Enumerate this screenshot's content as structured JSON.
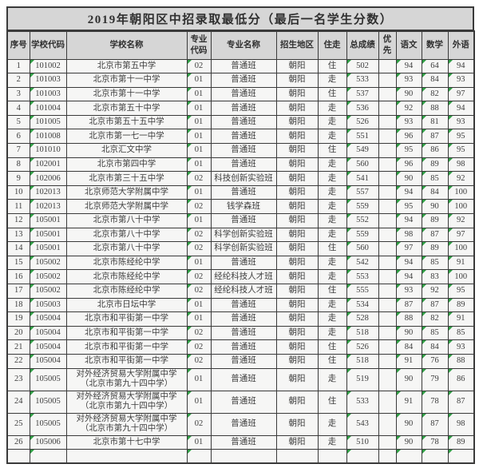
{
  "title": "2019年朝阳区中招录取最低分（最后一名学生分数）",
  "columns": [
    "序号",
    "学校代码",
    "学校名称",
    "专业代码",
    "专业名称",
    "招生地区",
    "住走",
    "总成绩",
    "优先",
    "语文",
    "数学",
    "外语"
  ],
  "rows": [
    [
      "1",
      "101002",
      "北京市第五中学",
      "02",
      "普通班",
      "朝阳",
      "住",
      "502",
      "",
      "94",
      "64",
      "94"
    ],
    [
      "2",
      "101003",
      "北京市第十一中学",
      "01",
      "普通班",
      "朝阳",
      "走",
      "533",
      "",
      "93",
      "84",
      "93"
    ],
    [
      "3",
      "101003",
      "北京市第十一中学",
      "01",
      "普通班",
      "朝阳",
      "住",
      "537",
      "",
      "90",
      "82",
      "97"
    ],
    [
      "4",
      "101004",
      "北京市第五十中学",
      "01",
      "普通班",
      "朝阳",
      "走",
      "536",
      "",
      "92",
      "88",
      "94"
    ],
    [
      "5",
      "101005",
      "北京市第五十五中学",
      "01",
      "普通班",
      "朝阳",
      "走",
      "526",
      "",
      "93",
      "81",
      "93"
    ],
    [
      "6",
      "101008",
      "北京市第一七一中学",
      "01",
      "普通班",
      "朝阳",
      "走",
      "551",
      "",
      "96",
      "87",
      "95"
    ],
    [
      "7",
      "101010",
      "北京汇文中学",
      "01",
      "普通班",
      "朝阳",
      "住",
      "549",
      "",
      "95",
      "86",
      "95"
    ],
    [
      "8",
      "102001",
      "北京市第四中学",
      "01",
      "普通班",
      "朝阳",
      "走",
      "560",
      "",
      "96",
      "89",
      "98"
    ],
    [
      "9",
      "102006",
      "北京市第三十五中学",
      "02",
      "科技创新实验班",
      "朝阳",
      "走",
      "541",
      "",
      "90",
      "85",
      "92"
    ],
    [
      "10",
      "102013",
      "北京师范大学附属中学",
      "01",
      "普通班",
      "朝阳",
      "走",
      "557",
      "",
      "94",
      "84",
      "100"
    ],
    [
      "11",
      "102013",
      "北京师范大学附属中学",
      "02",
      "钱学森班",
      "朝阳",
      "走",
      "559",
      "",
      "95",
      "90",
      "100"
    ],
    [
      "12",
      "105001",
      "北京市第八十中学",
      "01",
      "普通班",
      "朝阳",
      "走",
      "552",
      "",
      "94",
      "89",
      "92"
    ],
    [
      "13",
      "105001",
      "北京市第八十中学",
      "02",
      "科学创新实验班",
      "朝阳",
      "走",
      "559",
      "",
      "98",
      "87",
      "97"
    ],
    [
      "14",
      "105001",
      "北京市第八十中学",
      "02",
      "科学创新实验班",
      "朝阳",
      "住",
      "560",
      "",
      "97",
      "89",
      "100"
    ],
    [
      "15",
      "105002",
      "北京市陈经纶中学",
      "01",
      "普通班",
      "朝阳",
      "走",
      "542",
      "",
      "94",
      "85",
      "91"
    ],
    [
      "16",
      "105002",
      "北京市陈经纶中学",
      "02",
      "经纶科技人才班",
      "朝阳",
      "走",
      "553",
      "",
      "94",
      "83",
      "100"
    ],
    [
      "17",
      "105002",
      "北京市陈经纶中学",
      "02",
      "经纶科技人才班",
      "朝阳",
      "住",
      "555",
      "",
      "93",
      "92",
      "95"
    ],
    [
      "18",
      "105003",
      "北京市日坛中学",
      "01",
      "普通班",
      "朝阳",
      "走",
      "534",
      "",
      "87",
      "87",
      "89"
    ],
    [
      "19",
      "105004",
      "北京市和平街第一中学",
      "01",
      "普通班",
      "朝阳",
      "走",
      "528",
      "",
      "88",
      "82",
      "91"
    ],
    [
      "20",
      "105004",
      "北京市和平街第一中学",
      "02",
      "普通班",
      "朝阳",
      "走",
      "518",
      "",
      "90",
      "85",
      "85"
    ],
    [
      "21",
      "105004",
      "北京市和平街第一中学",
      "02",
      "普通班",
      "朝阳",
      "住",
      "526",
      "",
      "84",
      "84",
      "93"
    ],
    [
      "22",
      "105004",
      "北京市和平街第一中学",
      "02",
      "普通班",
      "朝阳",
      "住",
      "518",
      "",
      "91",
      "76",
      "88"
    ],
    [
      "23",
      "105005",
      "对外经济贸易大学附属中学\n（北京市第九十四中学）",
      "01",
      "普通班",
      "朝阳",
      "走",
      "519",
      "",
      "90",
      "79",
      "86"
    ],
    [
      "24",
      "105005",
      "对外经济贸易大学附属中学\n（北京市第九十四中学）",
      "01",
      "普通班",
      "朝阳",
      "住",
      "533",
      "",
      "91",
      "78",
      "87"
    ],
    [
      "25",
      "105005",
      "对外经济贸易大学附属中学\n（北京市第九十四中学）",
      "02",
      "普通班",
      "朝阳",
      "走",
      "543",
      "",
      "90",
      "87",
      "98"
    ],
    [
      "26",
      "105006",
      "北京市第十七中学",
      "01",
      "普通班",
      "朝阳",
      "走",
      "510",
      "",
      "90",
      "78",
      "89"
    ]
  ],
  "colors": {
    "header_bg": "#d6d6d6",
    "cell_bg": "#f6f6f5",
    "border": "#3a3a3a",
    "text": "#3d3d3d",
    "indicator_triangle_green": "#2f9e44"
  }
}
